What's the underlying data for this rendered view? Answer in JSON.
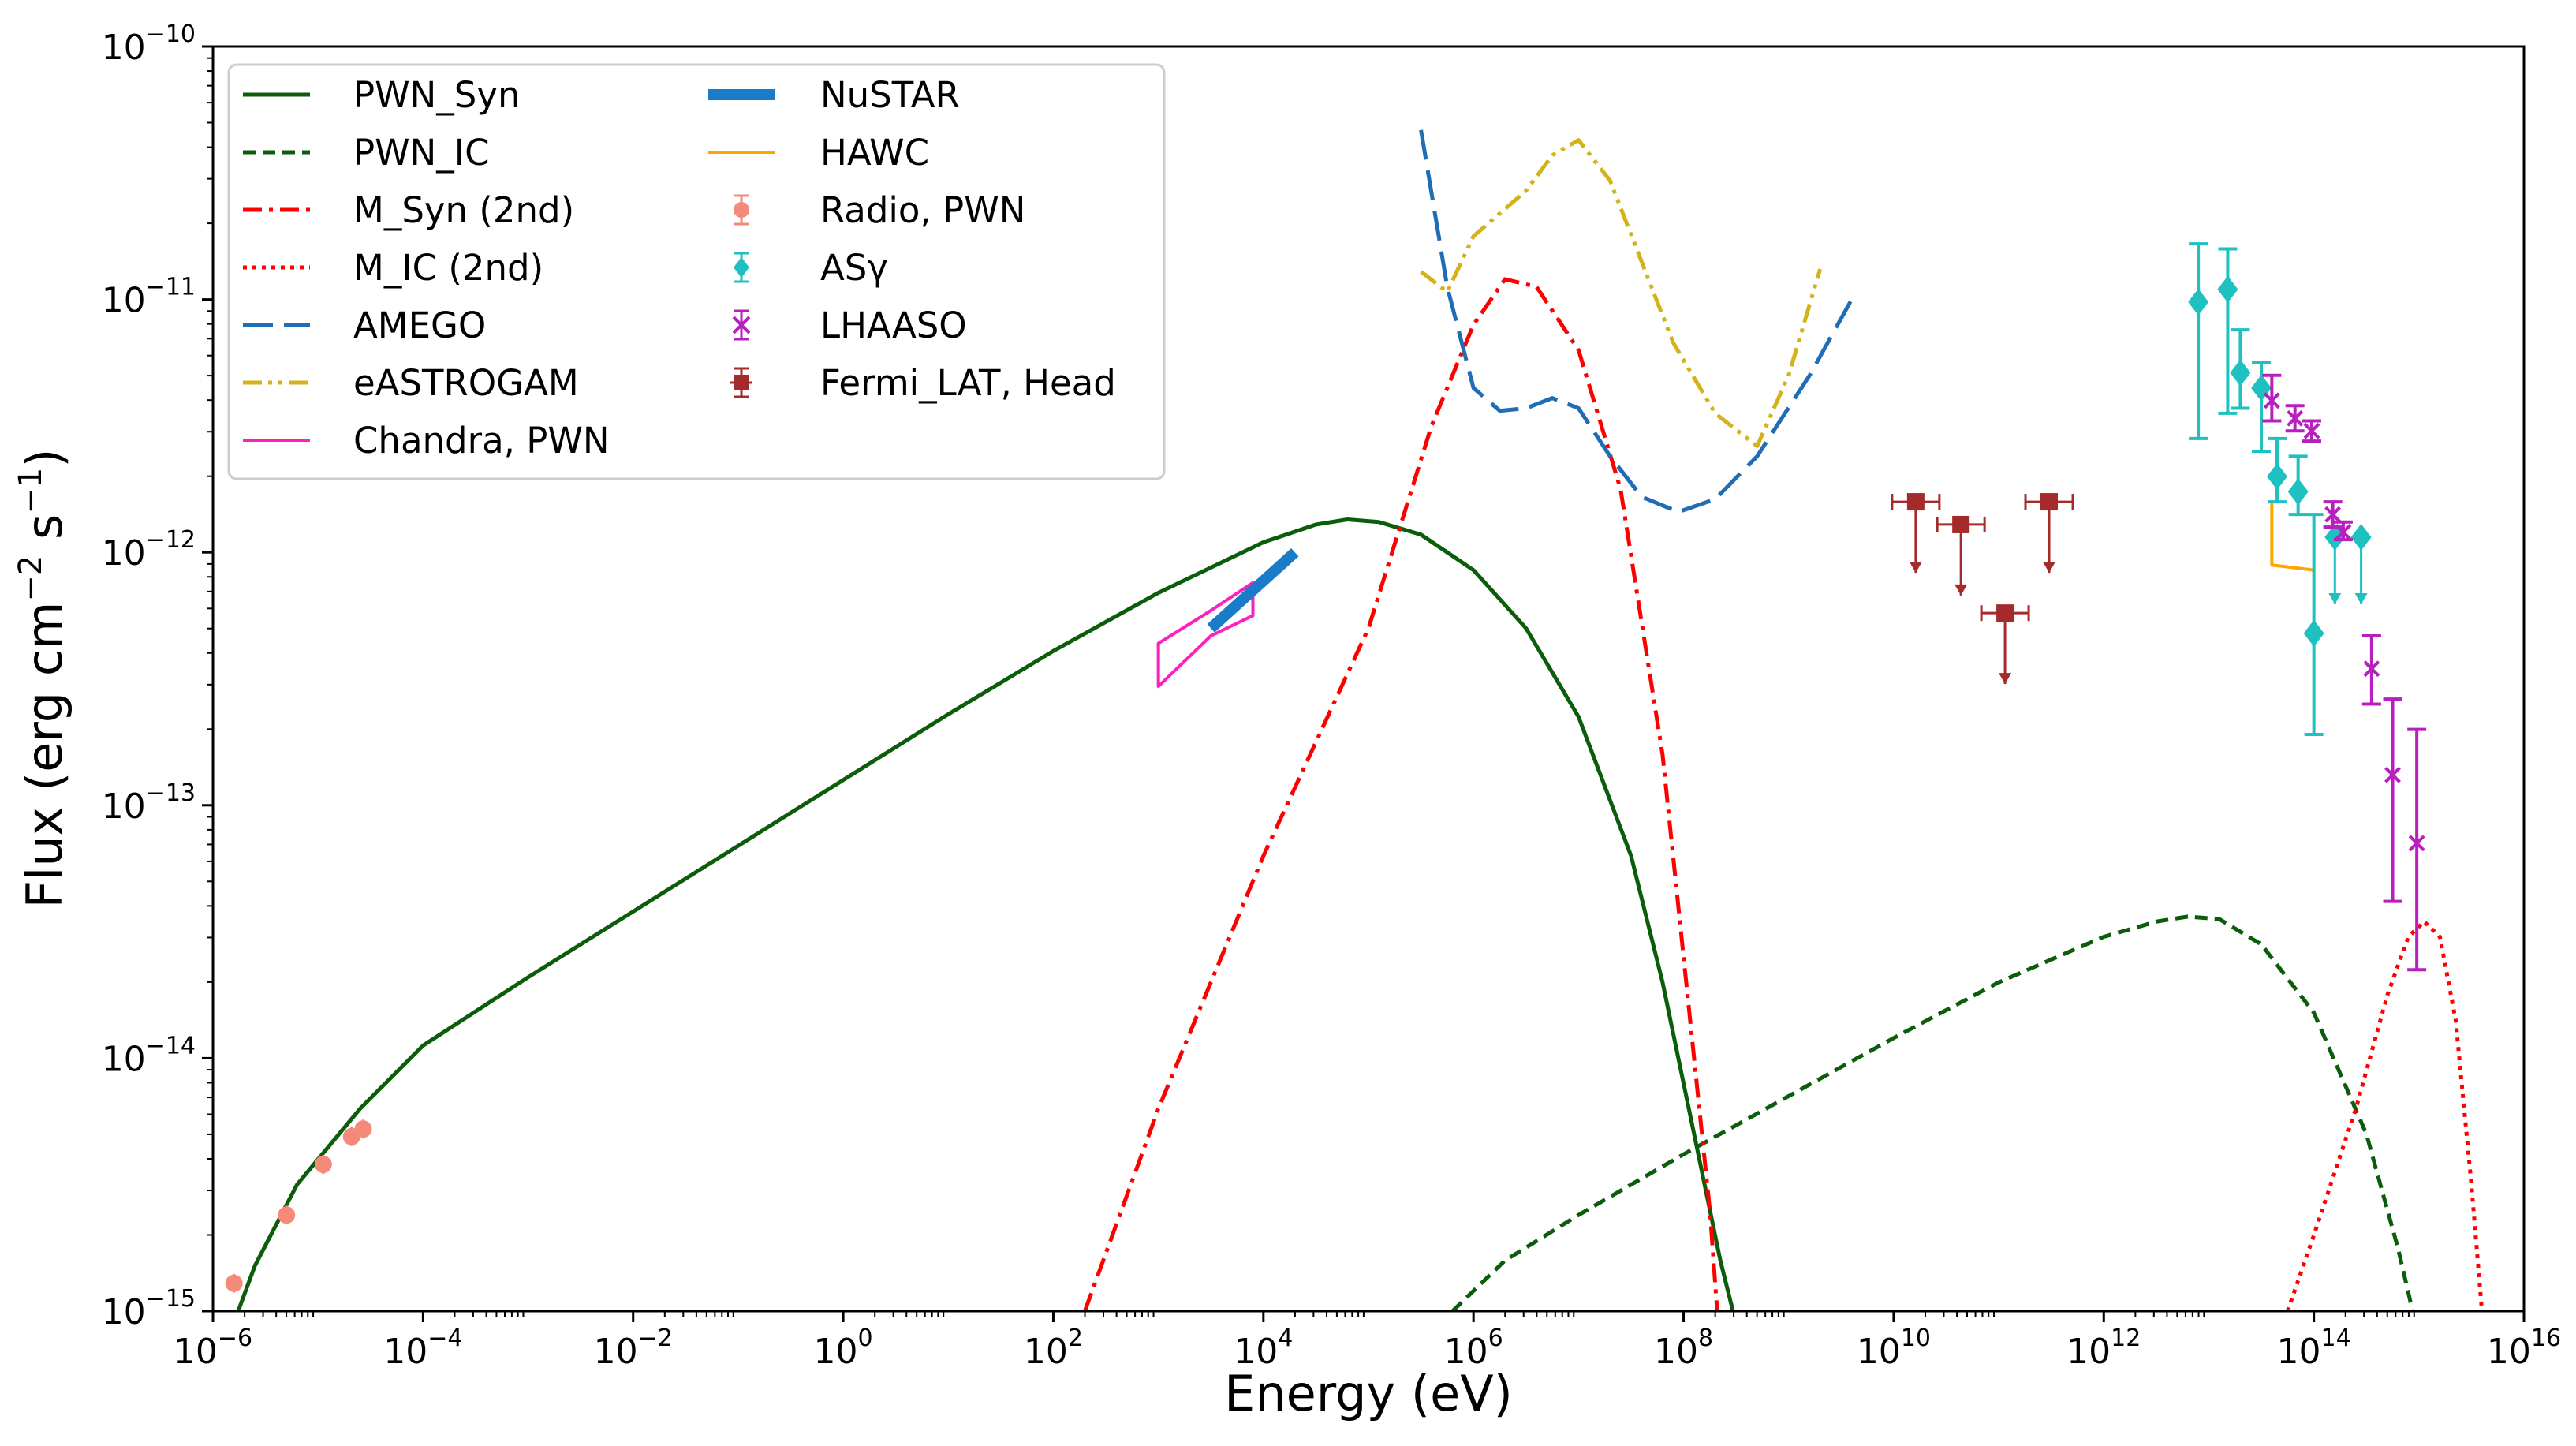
{
  "chart_data": {
    "type": "line",
    "title": "",
    "xlabel": "Energy (eV)",
    "ylabel": "Flux (erg cm$^{-2}$ s$^{-1}$)",
    "ylabel_parts": {
      "main": "Flux (erg cm",
      "exp1": "−2",
      "mid": " s",
      "exp2": "−1",
      "end": ")"
    },
    "xscale": "log",
    "yscale": "log",
    "xlim_log10": [
      -6,
      16
    ],
    "ylim_log10": [
      -15,
      -10
    ],
    "x_ticks": [
      {
        "base": "10",
        "exp": "−6",
        "log": -6
      },
      {
        "base": "10",
        "exp": "−4",
        "log": -4
      },
      {
        "base": "10",
        "exp": "−2",
        "log": -2
      },
      {
        "base": "10",
        "exp": "0",
        "log": 0
      },
      {
        "base": "10",
        "exp": "2",
        "log": 2
      },
      {
        "base": "10",
        "exp": "4",
        "log": 4
      },
      {
        "base": "10",
        "exp": "6",
        "log": 6
      },
      {
        "base": "10",
        "exp": "8",
        "log": 8
      },
      {
        "base": "10",
        "exp": "10",
        "log": 10
      },
      {
        "base": "10",
        "exp": "12",
        "log": 12
      },
      {
        "base": "10",
        "exp": "14",
        "log": 14
      },
      {
        "base": "10",
        "exp": "16",
        "log": 16
      }
    ],
    "y_ticks": [
      {
        "base": "10",
        "exp": "−15",
        "log": -15
      },
      {
        "base": "10",
        "exp": "−14",
        "log": -14
      },
      {
        "base": "10",
        "exp": "−13",
        "log": -13
      },
      {
        "base": "10",
        "exp": "−12",
        "log": -12
      },
      {
        "base": "10",
        "exp": "−11",
        "log": -11
      },
      {
        "base": "10",
        "exp": "−10",
        "log": -10
      }
    ],
    "legend_position": "upper-left",
    "legend_columns": 2,
    "series": [
      {
        "name": "PWN_Syn",
        "kind": "line",
        "color": "#0b5d0b",
        "style": "solid",
        "width": 5,
        "points": [
          [
            -5.76,
            -15
          ],
          [
            -5.6,
            -14.82
          ],
          [
            -5.2,
            -14.5
          ],
          [
            -4.6,
            -14.2
          ],
          [
            -4.0,
            -13.95
          ],
          [
            -3,
            -13.68
          ],
          [
            -2,
            -13.42
          ],
          [
            -1,
            -13.16
          ],
          [
            0,
            -12.9
          ],
          [
            1,
            -12.64
          ],
          [
            2,
            -12.39
          ],
          [
            3,
            -12.16
          ],
          [
            4,
            -11.96
          ],
          [
            4.5,
            -11.89
          ],
          [
            4.8,
            -11.87
          ],
          [
            5.1,
            -11.88
          ],
          [
            5.5,
            -11.93
          ],
          [
            6,
            -12.07
          ],
          [
            6.5,
            -12.3
          ],
          [
            7,
            -12.65
          ],
          [
            7.5,
            -13.2
          ],
          [
            7.8,
            -13.7
          ],
          [
            8.05,
            -14.2
          ],
          [
            8.35,
            -14.8
          ],
          [
            8.47,
            -15
          ]
        ]
      },
      {
        "name": "PWN_IC",
        "kind": "line",
        "color": "#0b5d0b",
        "style": "dashed",
        "width": 5,
        "points": [
          [
            5.8,
            -15
          ],
          [
            6.3,
            -14.8
          ],
          [
            7,
            -14.62
          ],
          [
            8,
            -14.38
          ],
          [
            9,
            -14.15
          ],
          [
            10,
            -13.92
          ],
          [
            11,
            -13.7
          ],
          [
            12,
            -13.52
          ],
          [
            12.5,
            -13.46
          ],
          [
            12.8,
            -13.44
          ],
          [
            13.1,
            -13.45
          ],
          [
            13.5,
            -13.55
          ],
          [
            14,
            -13.82
          ],
          [
            14.5,
            -14.3
          ],
          [
            14.8,
            -14.75
          ],
          [
            14.94,
            -15
          ]
        ]
      },
      {
        "name": "M_Syn (2nd)",
        "kind": "line",
        "color": "#ff0000",
        "style": "dashdot",
        "width": 5,
        "points": [
          [
            2.3,
            -15
          ],
          [
            3,
            -14.2
          ],
          [
            4,
            -13.2
          ],
          [
            5,
            -12.3
          ],
          [
            5.6,
            -11.5
          ],
          [
            6,
            -11.1
          ],
          [
            6.3,
            -10.92
          ],
          [
            6.6,
            -10.95
          ],
          [
            7,
            -11.2
          ],
          [
            7.4,
            -11.75
          ],
          [
            7.8,
            -12.8
          ],
          [
            8.05,
            -13.8
          ],
          [
            8.25,
            -14.6
          ],
          [
            8.32,
            -15
          ]
        ]
      },
      {
        "name": "M_IC (2nd)",
        "kind": "line",
        "color": "#ff0000",
        "style": "dotted",
        "width": 5,
        "points": [
          [
            13.75,
            -15
          ],
          [
            14.0,
            -14.7
          ],
          [
            14.4,
            -14.2
          ],
          [
            14.7,
            -13.75
          ],
          [
            14.9,
            -13.52
          ],
          [
            15.05,
            -13.46
          ],
          [
            15.2,
            -13.52
          ],
          [
            15.35,
            -13.85
          ],
          [
            15.5,
            -14.5
          ],
          [
            15.6,
            -15
          ]
        ]
      },
      {
        "name": "AMEGO",
        "kind": "line",
        "color": "#1f6db5",
        "style": "longdash",
        "width": 5,
        "points": [
          [
            5.5,
            -10.33
          ],
          [
            5.75,
            -10.95
          ],
          [
            6.0,
            -11.35
          ],
          [
            6.25,
            -11.44
          ],
          [
            6.5,
            -11.43
          ],
          [
            6.75,
            -11.39
          ],
          [
            7,
            -11.43
          ],
          [
            7.3,
            -11.62
          ],
          [
            7.6,
            -11.78
          ],
          [
            7.95,
            -11.84
          ],
          [
            8.3,
            -11.79
          ],
          [
            8.7,
            -11.62
          ],
          [
            9.2,
            -11.3
          ],
          [
            9.6,
            -11.0
          ]
        ]
      },
      {
        "name": "eASTROGAM",
        "kind": "line",
        "color": "#d4b21a",
        "style": "dashdotdot",
        "width": 5,
        "points": [
          [
            5.5,
            -10.89
          ],
          [
            5.75,
            -10.97
          ],
          [
            6.0,
            -10.75
          ],
          [
            6.5,
            -10.57
          ],
          [
            6.75,
            -10.43
          ],
          [
            7.0,
            -10.37
          ],
          [
            7.3,
            -10.53
          ],
          [
            7.6,
            -10.85
          ],
          [
            7.9,
            -11.17
          ],
          [
            8.3,
            -11.45
          ],
          [
            8.7,
            -11.58
          ],
          [
            9.0,
            -11.3
          ],
          [
            9.3,
            -10.88
          ]
        ]
      },
      {
        "name": "Chandra, PWN",
        "kind": "polygon",
        "color": "#ff1fbe",
        "style": "solid",
        "width": 4,
        "points": [
          [
            3,
            -12.36
          ],
          [
            3.5,
            -12.23
          ],
          [
            3.9,
            -12.12
          ],
          [
            3.9,
            -12.25
          ],
          [
            3.5,
            -12.33
          ],
          [
            3,
            -12.53
          ]
        ]
      },
      {
        "name": "NuSTAR",
        "kind": "line",
        "color": "#1a7cc8",
        "style": "solid",
        "width": 14,
        "points": [
          [
            3.5,
            -12.3
          ],
          [
            4.3,
            -12
          ]
        ]
      },
      {
        "name": "HAWC",
        "kind": "line",
        "color": "#ffa500",
        "style": "solid",
        "width": 4,
        "points": [
          [
            13.6,
            -11.8
          ],
          [
            13.6,
            -12.05
          ],
          [
            14.0,
            -12.07
          ]
        ]
      },
      {
        "name": "Radio, PWN",
        "kind": "errorbar",
        "color": "#f58a7a",
        "marker": "circle",
        "points": [
          [
            -5.8,
            -14.89
          ],
          [
            -5.3,
            -14.62
          ],
          [
            -4.95,
            -14.42
          ],
          [
            -4.68,
            -14.31
          ],
          [
            -4.57,
            -14.28
          ]
        ]
      },
      {
        "name": "ASγ",
        "kind": "errorbar",
        "color": "#1ec0c0",
        "marker": "diamond",
        "points": [
          [
            12.9,
            -11.01,
            -11.55,
            -10.78,
            false
          ],
          [
            13.18,
            -10.96,
            -11.45,
            -10.8,
            false
          ],
          [
            13.3,
            -11.29,
            -11.43,
            -11.12,
            false
          ],
          [
            13.5,
            -11.35,
            -11.6,
            -11.25,
            false
          ],
          [
            13.65,
            -11.7,
            -11.8,
            -11.55,
            false
          ],
          [
            13.85,
            -11.76,
            -11.85,
            -11.62,
            false
          ],
          [
            14.0,
            -12.32,
            -12.72,
            -11.85,
            false
          ],
          [
            14.2,
            -11.94,
            -12.2,
            -11.94,
            true
          ],
          [
            14.45,
            -11.94,
            -12.2,
            -11.94,
            true
          ]
        ]
      },
      {
        "name": "LHAASO",
        "kind": "errorbar",
        "color": "#b71fbf",
        "marker": "x",
        "points": [
          [
            13.6,
            -11.4,
            -11.48,
            -11.3
          ],
          [
            13.82,
            -11.47,
            -11.52,
            -11.42
          ],
          [
            13.98,
            -11.52,
            -11.56,
            -11.48
          ],
          [
            14.18,
            -11.85,
            -11.9,
            -11.8
          ],
          [
            14.28,
            -11.92,
            -11.95,
            -11.88
          ],
          [
            14.55,
            -12.46,
            -12.6,
            -12.33
          ],
          [
            14.75,
            -12.88,
            -13.38,
            -12.58
          ],
          [
            14.98,
            -13.15,
            -13.65,
            -12.7
          ]
        ]
      },
      {
        "name": "Fermi_LAT, Head",
        "kind": "upperlimit",
        "color": "#a52a2a",
        "marker": "square",
        "points": [
          [
            10.21,
            -11.8
          ],
          [
            10.64,
            -11.89
          ],
          [
            11.06,
            -12.24
          ],
          [
            11.48,
            -11.8
          ]
        ]
      }
    ],
    "legend_entries": [
      "PWN_Syn",
      "PWN_IC",
      "M_Syn (2nd)",
      "M_IC (2nd)",
      "AMEGO",
      "eASTROGAM",
      "Chandra, PWN",
      "NuSTAR",
      "HAWC",
      "Radio, PWN",
      "ASγ",
      "LHAASO",
      "Fermi_LAT, Head"
    ]
  }
}
